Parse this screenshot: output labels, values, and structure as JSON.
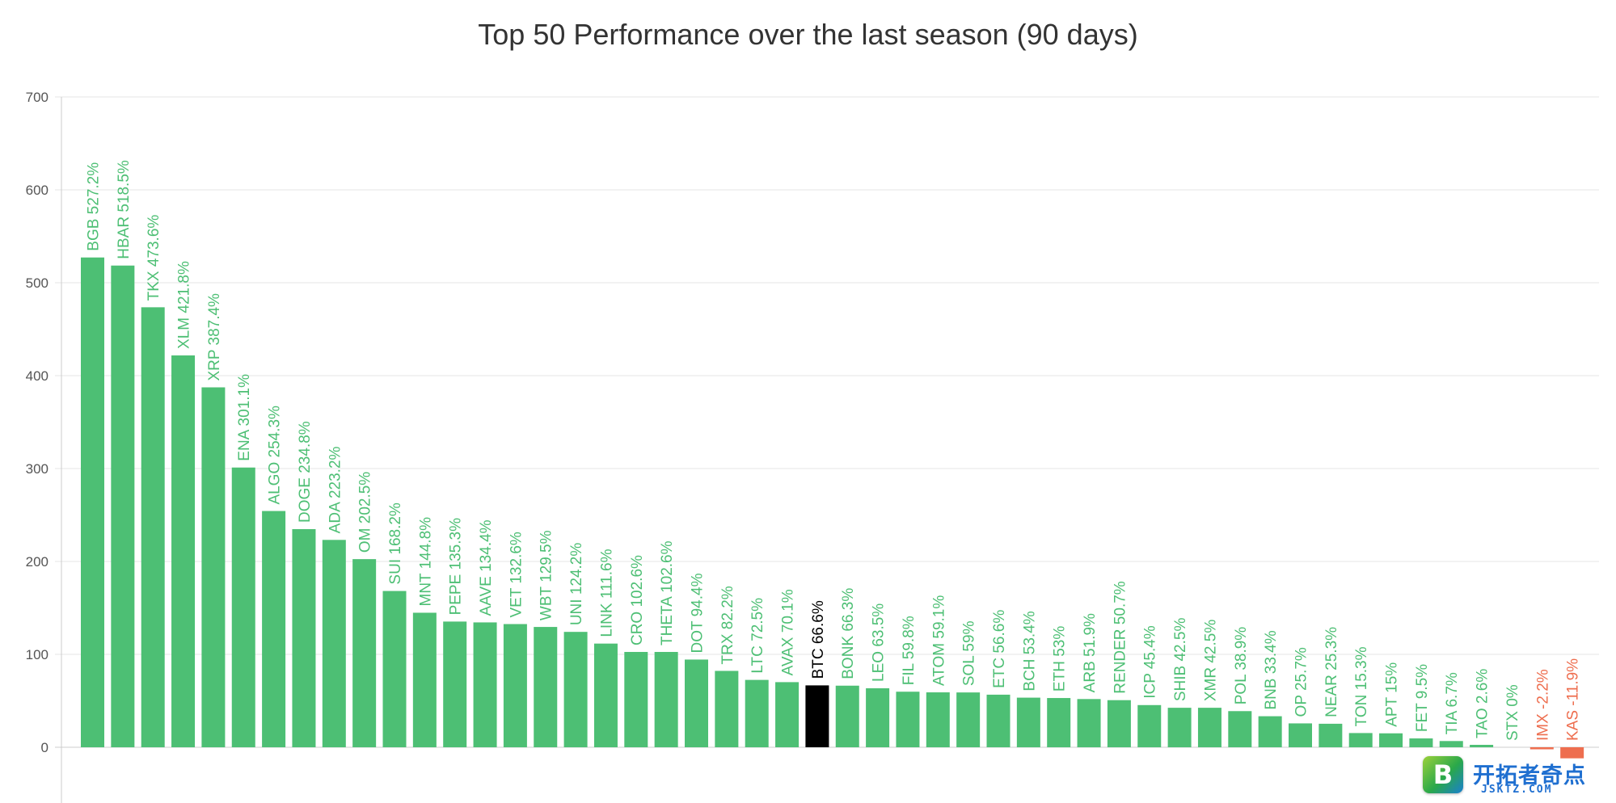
{
  "chart_data": {
    "type": "bar",
    "title": "Top 50 Performance over the last season (90 days)",
    "xlabel": "",
    "ylabel": "",
    "ylim": [
      -70,
      700
    ],
    "yticks": [
      0,
      100,
      200,
      300,
      400,
      500,
      600,
      700
    ],
    "grid": true,
    "legend": "none",
    "colors": {
      "positive": "#4dbf74",
      "negative": "#ee6e4f",
      "highlight": "#000000",
      "grid": "#e6e6e6",
      "axis": "#cccccc"
    },
    "highlight": "BTC",
    "categories": [
      "BGB",
      "HBAR",
      "TKX",
      "XLM",
      "XRP",
      "ENA",
      "ALGO",
      "DOGE",
      "ADA",
      "OM",
      "SUI",
      "MNT",
      "PEPE",
      "AAVE",
      "VET",
      "WBT",
      "UNI",
      "LINK",
      "CRO",
      "THETA",
      "DOT",
      "TRX",
      "LTC",
      "AVAX",
      "BTC",
      "BONK",
      "LEO",
      "FIL",
      "ATOM",
      "SOL",
      "ETC",
      "BCH",
      "ETH",
      "ARB",
      "RENDER",
      "ICP",
      "SHIB",
      "XMR",
      "POL",
      "BNB",
      "OP",
      "NEAR",
      "TON",
      "APT",
      "FET",
      "TIA",
      "TAO",
      "STX",
      "IMX",
      "KAS"
    ],
    "values": [
      527.2,
      518.5,
      473.6,
      421.8,
      387.4,
      301.1,
      254.3,
      234.8,
      223.2,
      202.5,
      168.2,
      144.8,
      135.3,
      134.4,
      132.6,
      129.5,
      124.2,
      111.6,
      102.6,
      102.6,
      94.4,
      82.2,
      72.5,
      70.1,
      66.6,
      66.3,
      63.5,
      59.8,
      59.1,
      59,
      56.6,
      53.4,
      53,
      51.9,
      50.7,
      45.4,
      42.5,
      42.5,
      38.9,
      33.4,
      25.7,
      25.3,
      15.3,
      15,
      9.5,
      6.7,
      2.6,
      0,
      -2.2,
      -11.9
    ],
    "labels": [
      "BGB 527.2%",
      "HBAR 518.5%",
      "TKX 473.6%",
      "XLM 421.8%",
      "XRP 387.4%",
      "ENA 301.1%",
      "ALGO 254.3%",
      "DOGE 234.8%",
      "ADA 223.2%",
      "OM 202.5%",
      "SUI 168.2%",
      "MNT 144.8%",
      "PEPE 135.3%",
      "AAVE 134.4%",
      "VET 132.6%",
      "WBT 129.5%",
      "UNI 124.2%",
      "LINK 111.6%",
      "CRO 102.6%",
      "THETA 102.6%",
      "DOT 94.4%",
      "TRX 82.2%",
      "LTC 72.5%",
      "AVAX 70.1%",
      "BTC 66.6%",
      "BONK 66.3%",
      "LEO 63.5%",
      "FIL 59.8%",
      "ATOM 59.1%",
      "SOL 59%",
      "ETC 56.6%",
      "BCH 53.4%",
      "ETH 53%",
      "ARB 51.9%",
      "RENDER 50.7%",
      "ICP 45.4%",
      "SHIB 42.5%",
      "XMR 42.5%",
      "POL 38.9%",
      "BNB 33.4%",
      "OP 25.7%",
      "NEAR 25.3%",
      "TON 15.3%",
      "APT 15%",
      "FET 9.5%",
      "TIA 6.7%",
      "TAO 2.6%",
      "STX 0%",
      "IMX -2.2%",
      "KAS -11.9%"
    ]
  },
  "watermark": {
    "badge_letter": "B",
    "text": "开拓者奇点",
    "subtext": "JSKTZ.COM"
  }
}
